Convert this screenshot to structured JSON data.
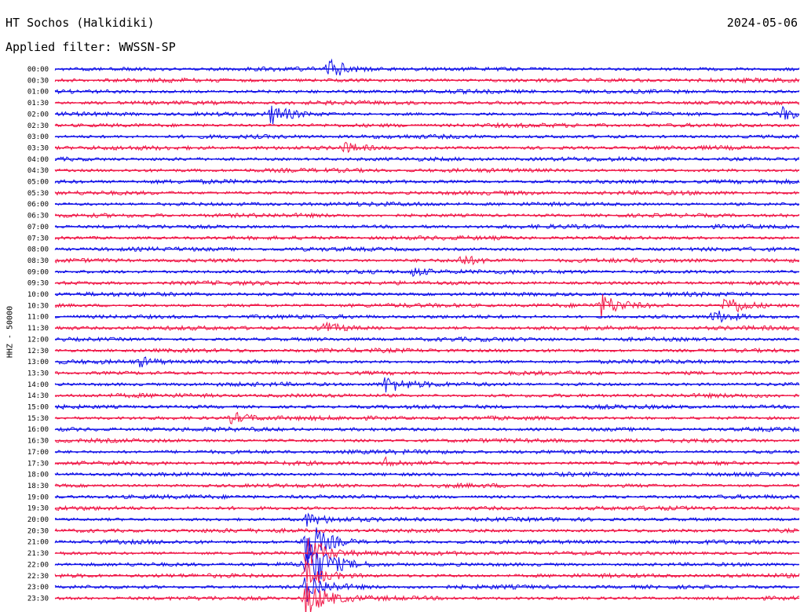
{
  "header": {
    "station": "HT Sochos (Halkidiki)",
    "date": "2024-05-06",
    "filter": "Applied filter: WWSSN-SP",
    "channel_label": "HHZ - 50000"
  },
  "chart_data": {
    "type": "line",
    "title": "HT Sochos (Halkidiki)",
    "subtitle": "Applied filter: WWSSN-SP",
    "ylabel": "HHZ - 50000",
    "xlabel": "",
    "grid": false,
    "legend": "none",
    "colors": [
      "#1010e8",
      "#f01848"
    ],
    "rows": [
      "00:00",
      "00:30",
      "01:00",
      "01:30",
      "02:00",
      "02:30",
      "03:00",
      "03:30",
      "04:00",
      "04:30",
      "05:00",
      "05:30",
      "06:00",
      "06:30",
      "07:00",
      "07:30",
      "08:00",
      "08:30",
      "09:00",
      "09:30",
      "10:00",
      "10:30",
      "11:00",
      "11:30",
      "12:00",
      "12:30",
      "13:00",
      "13:30",
      "14:00",
      "14:30",
      "15:00",
      "15:30",
      "16:00",
      "16:30",
      "17:00",
      "17:30",
      "18:00",
      "18:30",
      "19:00",
      "19:30",
      "20:00",
      "20:30",
      "21:00",
      "21:30",
      "22:00",
      "22:30",
      "23:00",
      "23:30"
    ],
    "row_minutes": 30,
    "events": [
      {
        "row": "00:00",
        "minute": 11.0,
        "amplitude": 0.9
      },
      {
        "row": "02:00",
        "minute": 8.7,
        "amplitude": 0.85
      },
      {
        "row": "02:00",
        "minute": 29.3,
        "amplitude": 0.55
      },
      {
        "row": "03:30",
        "minute": 11.6,
        "amplitude": 0.45
      },
      {
        "row": "08:30",
        "minute": 16.3,
        "amplitude": 0.45
      },
      {
        "row": "09:00",
        "minute": 14.4,
        "amplitude": 0.4
      },
      {
        "row": "10:30",
        "minute": 22.0,
        "amplitude": 1.0
      },
      {
        "row": "10:30",
        "minute": 27.0,
        "amplitude": 1.0
      },
      {
        "row": "11:00",
        "minute": 26.5,
        "amplitude": 0.6
      },
      {
        "row": "11:30",
        "minute": 10.7,
        "amplitude": 0.6
      },
      {
        "row": "13:00",
        "minute": 3.4,
        "amplitude": 0.4
      },
      {
        "row": "14:00",
        "minute": 13.3,
        "amplitude": 0.75
      },
      {
        "row": "15:30",
        "minute": 7.1,
        "amplitude": 0.55
      },
      {
        "row": "17:30",
        "minute": 13.3,
        "amplitude": 0.45
      },
      {
        "row": "20:00",
        "minute": 10.1,
        "amplitude": 0.55
      },
      {
        "row": "21:00",
        "minute": 10.1,
        "amplitude": 2.2
      },
      {
        "row": "21:30",
        "minute": 10.1,
        "amplitude": 1.8
      },
      {
        "row": "22:00",
        "minute": 10.1,
        "amplitude": 3.0
      },
      {
        "row": "22:30",
        "minute": 10.1,
        "amplitude": 1.2
      },
      {
        "row": "23:00",
        "minute": 10.1,
        "amplitude": 1.4
      },
      {
        "row": "23:30",
        "minute": 10.1,
        "amplitude": 1.8
      }
    ]
  }
}
